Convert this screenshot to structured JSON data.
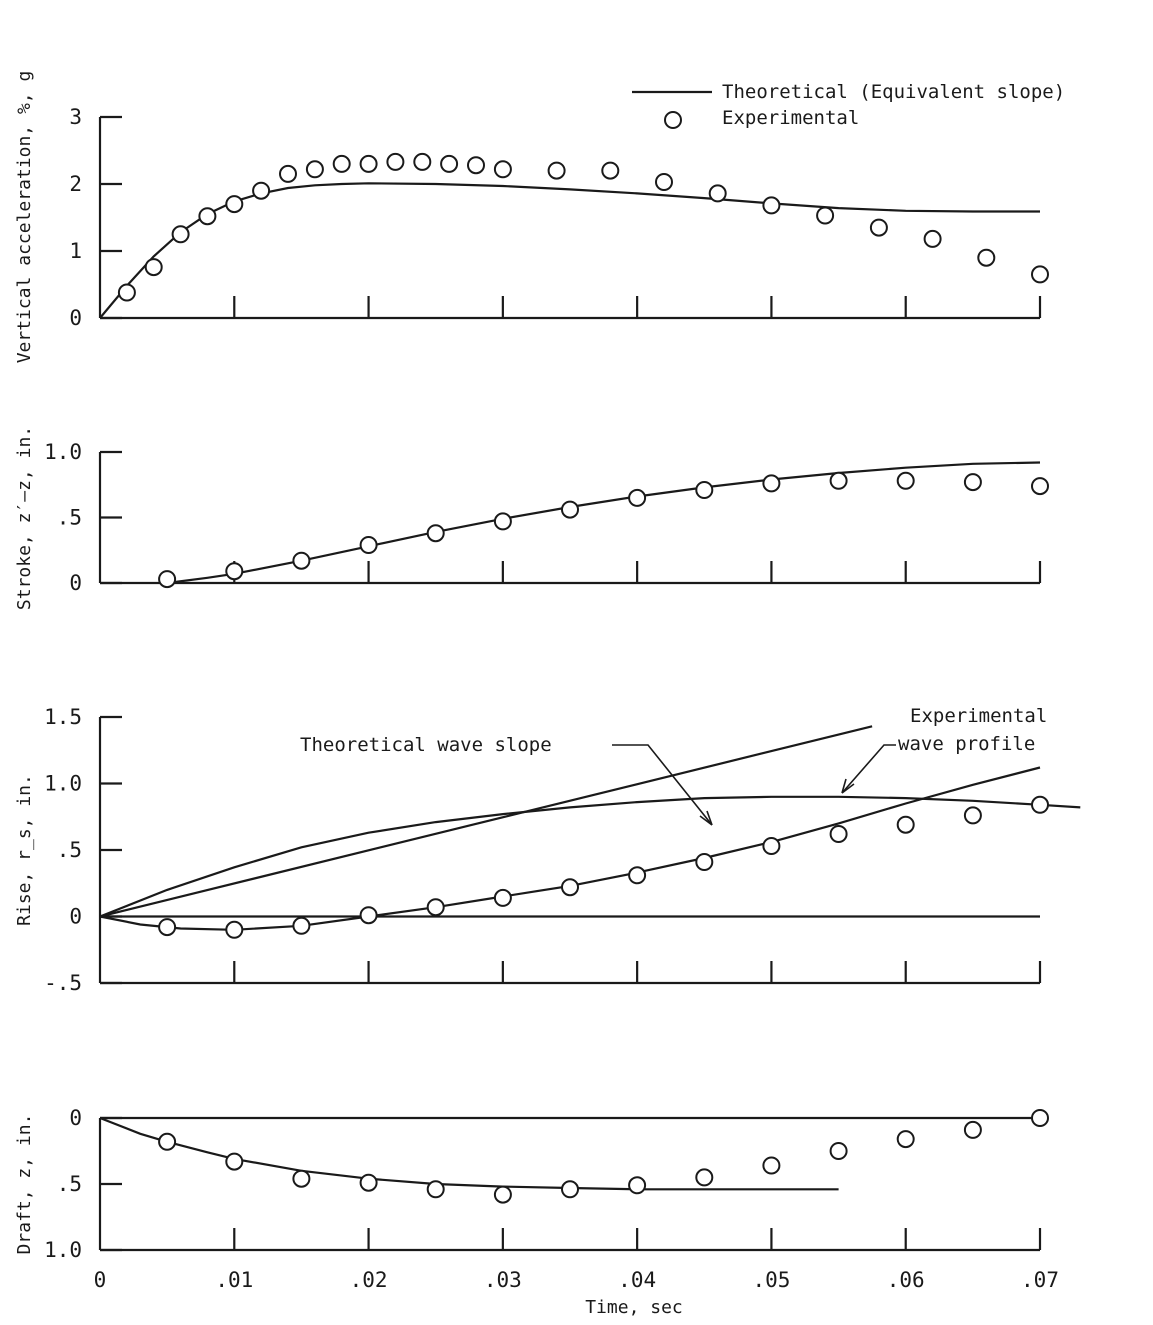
{
  "legend": {
    "theoretical": "Theoretical (Equivalent slope)",
    "experimental": "Experimental"
  },
  "annotations": {
    "theoretical_wave_slope": "Theoretical wave slope",
    "experimental_wave_profile_1": "Experimental",
    "experimental_wave_profile_2": "wave profile"
  },
  "xaxis": {
    "label": "Time, sec",
    "range": [
      0,
      0.07
    ],
    "tick_labels": [
      "0",
      ".01",
      ".02",
      ".03",
      ".04",
      ".05",
      ".06",
      ".07"
    ]
  },
  "chart_data": [
    {
      "type": "scatter",
      "ylabel": "Vertical acceleration, %, g",
      "ylim": [
        0,
        3
      ],
      "yticks": [
        {
          "v": 0,
          "label": "0"
        },
        {
          "v": 1,
          "label": "1"
        },
        {
          "v": 2,
          "label": "2"
        },
        {
          "v": 3,
          "label": "3"
        }
      ],
      "series": [
        {
          "name": "Theoretical (Equivalent slope)",
          "kind": "line",
          "x": [
            0,
            0.002,
            0.004,
            0.006,
            0.008,
            0.01,
            0.012,
            0.014,
            0.016,
            0.018,
            0.02,
            0.025,
            0.03,
            0.035,
            0.04,
            0.045,
            0.05,
            0.055,
            0.06,
            0.065,
            0.07
          ],
          "y": [
            0,
            0.48,
            0.92,
            1.28,
            1.55,
            1.74,
            1.86,
            1.94,
            1.98,
            2.0,
            2.01,
            2.0,
            1.97,
            1.92,
            1.86,
            1.79,
            1.71,
            1.64,
            1.6,
            1.59,
            1.59
          ]
        },
        {
          "name": "Experimental",
          "kind": "points",
          "x": [
            0.002,
            0.004,
            0.006,
            0.008,
            0.01,
            0.012,
            0.014,
            0.016,
            0.018,
            0.02,
            0.022,
            0.024,
            0.026,
            0.028,
            0.03,
            0.034,
            0.038,
            0.042,
            0.046,
            0.05,
            0.054,
            0.058,
            0.062,
            0.066,
            0.07
          ],
          "y": [
            0.38,
            0.76,
            1.25,
            1.52,
            1.7,
            1.9,
            2.15,
            2.22,
            2.3,
            2.3,
            2.33,
            2.33,
            2.3,
            2.28,
            2.22,
            2.2,
            2.2,
            2.03,
            1.86,
            1.68,
            1.53,
            1.35,
            1.18,
            0.9,
            0.65
          ]
        }
      ]
    },
    {
      "type": "scatter",
      "ylabel": "Stroke, z′–z, in.",
      "ylim": [
        0,
        1.0
      ],
      "yticks": [
        {
          "v": 0,
          "label": "0"
        },
        {
          "v": 0.5,
          "label": ".5"
        },
        {
          "v": 1.0,
          "label": "1.0"
        }
      ],
      "series": [
        {
          "name": "Theoretical",
          "kind": "line",
          "x": [
            0.005,
            0.008,
            0.01,
            0.015,
            0.02,
            0.025,
            0.03,
            0.035,
            0.04,
            0.045,
            0.05,
            0.055,
            0.06,
            0.065,
            0.07
          ],
          "y": [
            0.0,
            0.04,
            0.07,
            0.17,
            0.28,
            0.39,
            0.49,
            0.58,
            0.66,
            0.73,
            0.79,
            0.84,
            0.88,
            0.91,
            0.92
          ]
        },
        {
          "name": "Experimental",
          "kind": "points",
          "x": [
            0.005,
            0.01,
            0.015,
            0.02,
            0.025,
            0.03,
            0.035,
            0.04,
            0.045,
            0.05,
            0.055,
            0.06,
            0.065,
            0.07
          ],
          "y": [
            0.03,
            0.09,
            0.17,
            0.29,
            0.38,
            0.47,
            0.56,
            0.65,
            0.71,
            0.76,
            0.78,
            0.78,
            0.77,
            0.74
          ]
        }
      ]
    },
    {
      "type": "scatter",
      "ylabel": "Rise, r_s, in.",
      "ylim": [
        -0.5,
        1.5
      ],
      "yticks": [
        {
          "v": -0.5,
          "label": "-.5"
        },
        {
          "v": 0,
          "label": "0"
        },
        {
          "v": 0.5,
          "label": ".5"
        },
        {
          "v": 1.0,
          "label": "1.0"
        },
        {
          "v": 1.5,
          "label": "1.5"
        }
      ],
      "series": [
        {
          "name": "Theoretical wave slope",
          "kind": "line",
          "x": [
            0,
            0.0575
          ],
          "y": [
            0,
            1.43
          ]
        },
        {
          "name": "Experimental wave profile",
          "kind": "line",
          "x": [
            0,
            0.005,
            0.01,
            0.015,
            0.02,
            0.025,
            0.03,
            0.035,
            0.04,
            0.045,
            0.05,
            0.055,
            0.06,
            0.065,
            0.07,
            0.073
          ],
          "y": [
            0,
            0.2,
            0.37,
            0.52,
            0.63,
            0.71,
            0.77,
            0.82,
            0.86,
            0.89,
            0.9,
            0.9,
            0.89,
            0.87,
            0.84,
            0.82
          ]
        },
        {
          "name": "Theoretical",
          "kind": "line",
          "x": [
            0,
            0.003,
            0.006,
            0.01,
            0.015,
            0.02,
            0.025,
            0.03,
            0.035,
            0.04,
            0.045,
            0.05,
            0.055,
            0.06,
            0.065,
            0.07
          ],
          "y": [
            0,
            -0.06,
            -0.09,
            -0.1,
            -0.07,
            0.0,
            0.07,
            0.15,
            0.23,
            0.33,
            0.44,
            0.56,
            0.7,
            0.85,
            0.99,
            1.12
          ]
        },
        {
          "name": "Zero",
          "kind": "line",
          "x": [
            0,
            0.07
          ],
          "y": [
            0,
            0
          ]
        },
        {
          "name": "Experimental",
          "kind": "points",
          "x": [
            0.005,
            0.01,
            0.015,
            0.02,
            0.025,
            0.03,
            0.035,
            0.04,
            0.045,
            0.05,
            0.055,
            0.06,
            0.065,
            0.07
          ],
          "y": [
            -0.08,
            -0.1,
            -0.07,
            0.01,
            0.07,
            0.14,
            0.22,
            0.31,
            0.41,
            0.53,
            0.62,
            0.69,
            0.76,
            0.84
          ]
        }
      ]
    },
    {
      "type": "scatter",
      "ylabel": "Draft, z, in.",
      "ylim": [
        0,
        1.0
      ],
      "inverted": true,
      "yticks": [
        {
          "v": 0,
          "label": "0"
        },
        {
          "v": 0.5,
          "label": ".5"
        },
        {
          "v": 1.0,
          "label": "1.0"
        }
      ],
      "series": [
        {
          "name": "Theoretical",
          "kind": "line",
          "x": [
            0,
            0.003,
            0.005,
            0.008,
            0.01,
            0.015,
            0.02,
            0.025,
            0.03,
            0.035,
            0.04,
            0.045,
            0.05,
            0.055
          ],
          "y": [
            0,
            0.12,
            0.18,
            0.26,
            0.31,
            0.4,
            0.46,
            0.5,
            0.52,
            0.53,
            0.54,
            0.54,
            0.54,
            0.54
          ]
        },
        {
          "name": "Zero",
          "kind": "line",
          "x": [
            0,
            0.07
          ],
          "y": [
            0,
            0
          ]
        },
        {
          "name": "Experimental",
          "kind": "points",
          "x": [
            0.005,
            0.01,
            0.015,
            0.02,
            0.025,
            0.03,
            0.035,
            0.04,
            0.045,
            0.05,
            0.055,
            0.06,
            0.065,
            0.07
          ],
          "y": [
            0.18,
            0.33,
            0.46,
            0.49,
            0.54,
            0.58,
            0.54,
            0.51,
            0.45,
            0.36,
            0.25,
            0.16,
            0.09,
            0.0
          ]
        }
      ]
    }
  ]
}
